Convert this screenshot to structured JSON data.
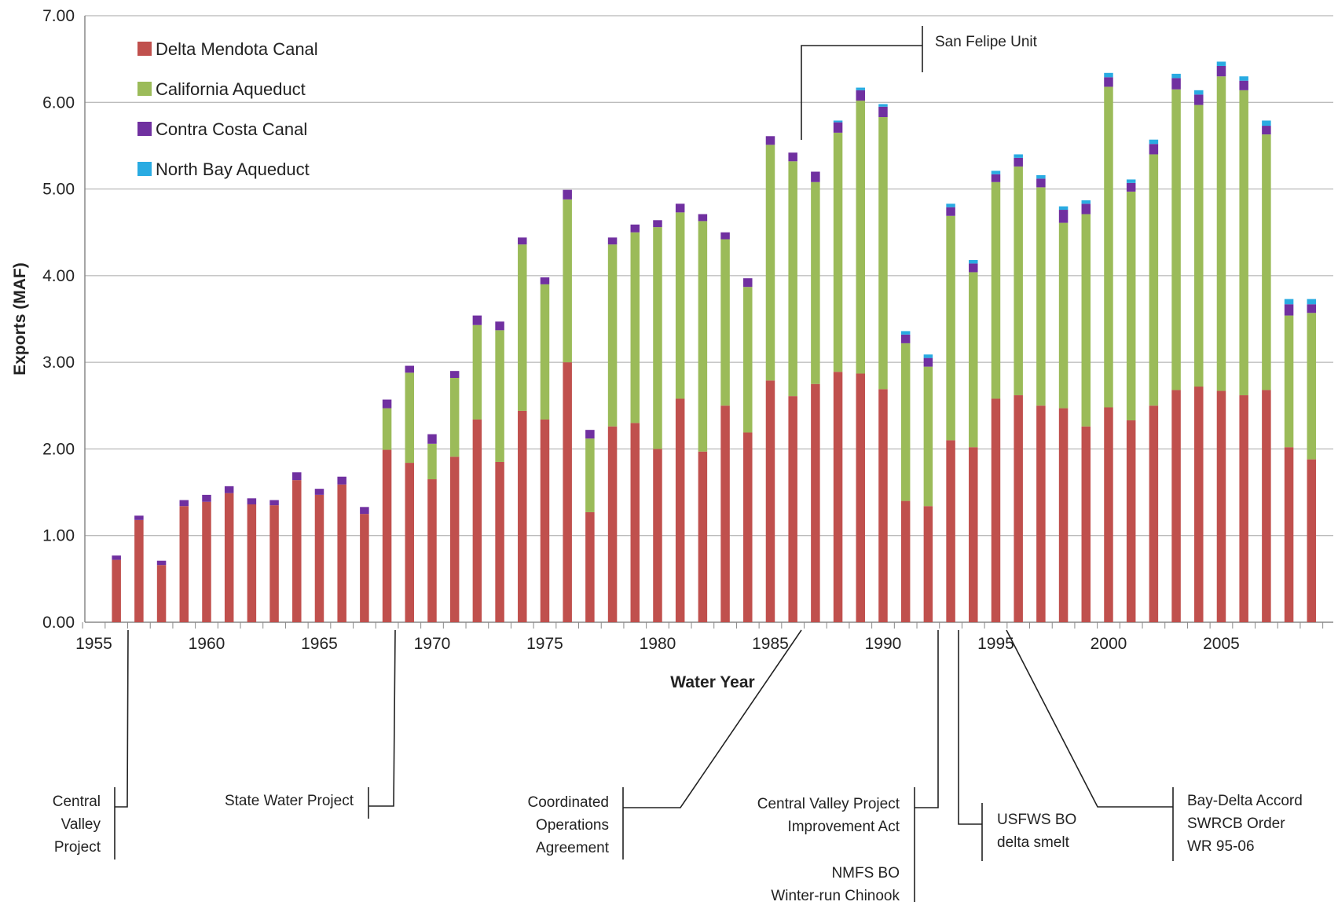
{
  "chart_data": {
    "type": "bar",
    "stacked": true,
    "xlabel": "Water Year",
    "ylabel": "Exports (MAF)",
    "ylim": [
      0,
      7
    ],
    "yticks": [
      "0.00",
      "1.00",
      "2.00",
      "3.00",
      "4.00",
      "5.00",
      "6.00",
      "7.00"
    ],
    "xticks": [
      "1955",
      "1960",
      "1965",
      "1970",
      "1975",
      "1980",
      "1985",
      "1990",
      "1995",
      "2000",
      "2005"
    ],
    "grid": true,
    "legend_position": "top-left",
    "colors": {
      "Delta Mendota Canal": "#c0504d",
      "California Aqueduct": "#9bbb59",
      "Contra Costa Canal": "#7030a0",
      "North Bay Aqueduct": "#29abe2"
    },
    "categories": [
      1956,
      1957,
      1958,
      1959,
      1960,
      1961,
      1962,
      1963,
      1964,
      1965,
      1966,
      1967,
      1968,
      1969,
      1970,
      1971,
      1972,
      1973,
      1974,
      1975,
      1976,
      1977,
      1978,
      1979,
      1980,
      1981,
      1982,
      1983,
      1984,
      1985,
      1986,
      1987,
      1988,
      1989,
      1990,
      1991,
      1992,
      1993,
      1994,
      1995,
      1996,
      1997,
      1998,
      1999,
      2000,
      2001,
      2002,
      2003,
      2004,
      2005,
      2006,
      2007,
      2008,
      2009
    ],
    "series": [
      {
        "name": "Delta Mendota Canal",
        "values": [
          0.72,
          1.18,
          0.66,
          1.34,
          1.39,
          1.49,
          1.36,
          1.35,
          1.64,
          1.47,
          1.59,
          1.25,
          1.99,
          1.84,
          1.65,
          1.91,
          2.34,
          1.85,
          2.44,
          2.34,
          3.0,
          1.27,
          2.26,
          2.3,
          2.0,
          2.58,
          1.97,
          2.5,
          2.19,
          2.79,
          2.61,
          2.75,
          2.89,
          2.87,
          2.69,
          1.4,
          1.34,
          2.1,
          2.02,
          2.58,
          2.62,
          2.5,
          2.47,
          2.26,
          2.48,
          2.33,
          2.5,
          2.68,
          2.72,
          2.67,
          2.62,
          2.68,
          2.02,
          1.88
        ]
      },
      {
        "name": "California Aqueduct",
        "values": [
          0,
          0,
          0,
          0,
          0,
          0,
          0,
          0,
          0,
          0,
          0,
          0,
          0.48,
          1.04,
          0.41,
          0.91,
          1.09,
          1.52,
          1.92,
          1.56,
          1.88,
          0.85,
          2.1,
          2.2,
          2.56,
          2.15,
          2.66,
          1.92,
          1.68,
          2.72,
          2.71,
          2.33,
          2.76,
          3.15,
          3.14,
          1.82,
          1.61,
          2.59,
          2.02,
          2.5,
          2.64,
          2.52,
          2.14,
          2.45,
          3.7,
          2.64,
          2.9,
          3.47,
          3.25,
          3.63,
          3.52,
          2.95,
          1.52,
          1.69
        ]
      },
      {
        "name": "Contra Costa Canal",
        "values": [
          0.05,
          0.05,
          0.05,
          0.07,
          0.08,
          0.08,
          0.07,
          0.06,
          0.09,
          0.07,
          0.09,
          0.08,
          0.1,
          0.08,
          0.11,
          0.08,
          0.11,
          0.1,
          0.08,
          0.08,
          0.11,
          0.1,
          0.08,
          0.09,
          0.08,
          0.1,
          0.08,
          0.08,
          0.1,
          0.1,
          0.1,
          0.12,
          0.12,
          0.12,
          0.12,
          0.1,
          0.1,
          0.1,
          0.1,
          0.09,
          0.1,
          0.1,
          0.15,
          0.12,
          0.11,
          0.1,
          0.12,
          0.13,
          0.12,
          0.12,
          0.11,
          0.1,
          0.13,
          0.1
        ]
      },
      {
        "name": "North Bay Aqueduct",
        "values": [
          0,
          0,
          0,
          0,
          0,
          0,
          0,
          0,
          0,
          0,
          0,
          0,
          0,
          0,
          0,
          0,
          0,
          0,
          0,
          0,
          0,
          0,
          0,
          0,
          0,
          0,
          0,
          0,
          0,
          0,
          0,
          0,
          0.02,
          0.03,
          0.03,
          0.04,
          0.04,
          0.04,
          0.04,
          0.04,
          0.04,
          0.04,
          0.04,
          0.04,
          0.05,
          0.04,
          0.05,
          0.05,
          0.05,
          0.05,
          0.05,
          0.06,
          0.06,
          0.06
        ]
      }
    ],
    "annotations": [
      {
        "year": 1956,
        "lines": [
          "Central",
          "Valley",
          "Project"
        ]
      },
      {
        "year": 1968,
        "lines": [
          "State Water Project"
        ]
      },
      {
        "year": 1986,
        "lines": [
          "Coordinated",
          "Operations",
          "Agreement"
        ]
      },
      {
        "year": 1986,
        "lines": [
          "San Felipe Unit"
        ]
      },
      {
        "year": 1992,
        "lines": [
          "Central Valley Project",
          "Improvement Act",
          "NMFS BO",
          "Winter-run Chinook"
        ]
      },
      {
        "year": 1993,
        "lines": [
          "USFWS BO",
          "delta smelt"
        ]
      },
      {
        "year": 1995,
        "lines": [
          "Bay-Delta Accord",
          "SWRCB Order",
          "WR 95-06"
        ]
      }
    ]
  }
}
